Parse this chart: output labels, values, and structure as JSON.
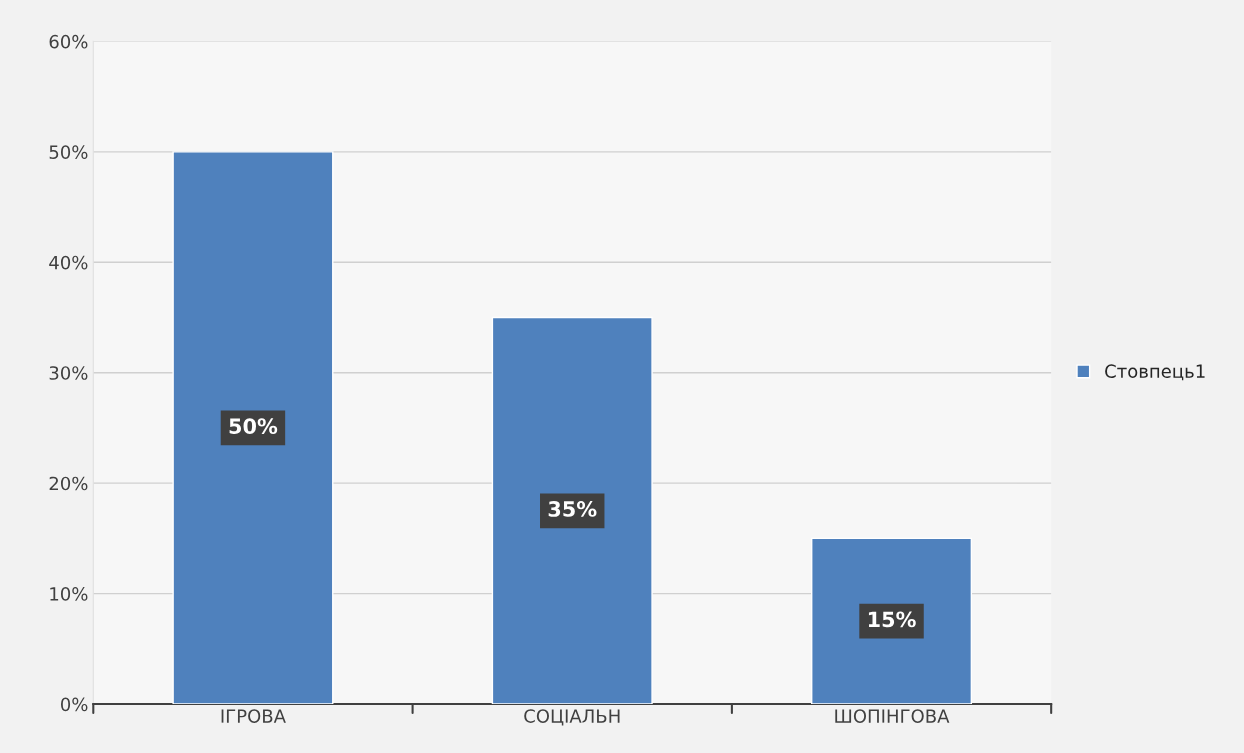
{
  "chart_data": {
    "type": "bar",
    "categories": [
      "ІГРОВА",
      "СОЦІАЛЬН",
      "ШОПІНГОВА"
    ],
    "series": [
      {
        "name": "Стовпець1",
        "color": "#4f81bd",
        "values": [
          50,
          35,
          15
        ],
        "value_labels": [
          "50%",
          "35%",
          "15%"
        ]
      }
    ],
    "ylim": [
      0,
      60
    ],
    "yticks": [
      {
        "value": 0,
        "label": "0%"
      },
      {
        "value": 10,
        "label": "10%"
      },
      {
        "value": 20,
        "label": "20%"
      },
      {
        "value": 30,
        "label": "30%"
      },
      {
        "value": 40,
        "label": "40%"
      },
      {
        "value": 50,
        "label": "50%"
      },
      {
        "value": 60,
        "label": "60%"
      }
    ],
    "grid": "y",
    "legend": "right"
  }
}
